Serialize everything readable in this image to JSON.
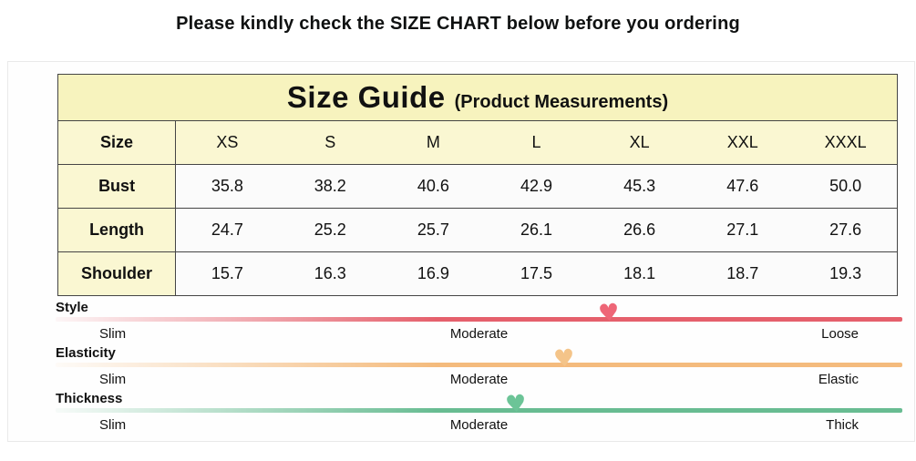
{
  "header": {
    "title": "Please kindly check the SIZE CHART below before you ordering"
  },
  "table": {
    "title": "Size Guide",
    "subtitle": "(Product Measurements)",
    "columns": [
      "Size",
      "XS",
      "S",
      "M",
      "L",
      "XL",
      "XXL",
      "XXXL"
    ],
    "rows": [
      {
        "label": "Bust",
        "values": [
          "35.8",
          "38.2",
          "40.6",
          "42.9",
          "45.3",
          "47.6",
          "50.0"
        ]
      },
      {
        "label": "Length",
        "values": [
          "24.7",
          "25.2",
          "25.7",
          "26.1",
          "26.6",
          "27.1",
          "27.6"
        ]
      },
      {
        "label": "Shoulder",
        "values": [
          "15.7",
          "16.3",
          "16.9",
          "17.5",
          "18.1",
          "18.7",
          "19.3"
        ]
      }
    ]
  },
  "attributes": [
    {
      "name": "Style",
      "left": "Slim",
      "middle": "Moderate",
      "right": "Loose",
      "bar_color": "#E5606C",
      "heart_color": "#EE6677",
      "marker_left": "65.3%"
    },
    {
      "name": "Elasticity",
      "left": "Slim",
      "middle": "Moderate",
      "right": "Elastic",
      "bar_color": "#F4BB7D",
      "heart_color": "#F4C489",
      "marker_left": "60.1%"
    },
    {
      "name": "Thickness",
      "left": "Slim",
      "middle": "Moderate",
      "right": "Thick",
      "bar_color": "#68BC92",
      "heart_color": "#6CC497",
      "marker_left": "54.4%"
    }
  ],
  "icons": {
    "heart": "♥"
  },
  "colors": {
    "table_header_bg": "#F7F3BE",
    "table_label_bg": "#FAF7D2",
    "table_data_bg": "#FBFBFB",
    "table_border": "#454545",
    "panel_border": "#E9E9E9",
    "text": "#111111"
  },
  "chart_data": {
    "type": "table",
    "title": "Size Guide (Product Measurements)",
    "categories": [
      "XS",
      "S",
      "M",
      "L",
      "XL",
      "XXL",
      "XXXL"
    ],
    "series": [
      {
        "name": "Bust",
        "values": [
          35.8,
          38.2,
          40.6,
          42.9,
          45.3,
          47.6,
          50.0
        ]
      },
      {
        "name": "Length",
        "values": [
          24.7,
          25.2,
          25.7,
          26.1,
          26.6,
          27.1,
          27.6
        ]
      },
      {
        "name": "Shoulder",
        "values": [
          15.7,
          16.3,
          16.9,
          17.5,
          18.1,
          18.7,
          19.3
        ]
      }
    ],
    "scales": [
      {
        "name": "Style",
        "labels": [
          "Slim",
          "Moderate",
          "Loose"
        ],
        "marker_position_pct": 65.3
      },
      {
        "name": "Elasticity",
        "labels": [
          "Slim",
          "Moderate",
          "Elastic"
        ],
        "marker_position_pct": 60.1
      },
      {
        "name": "Thickness",
        "labels": [
          "Slim",
          "Moderate",
          "Thick"
        ],
        "marker_position_pct": 54.4
      }
    ]
  }
}
